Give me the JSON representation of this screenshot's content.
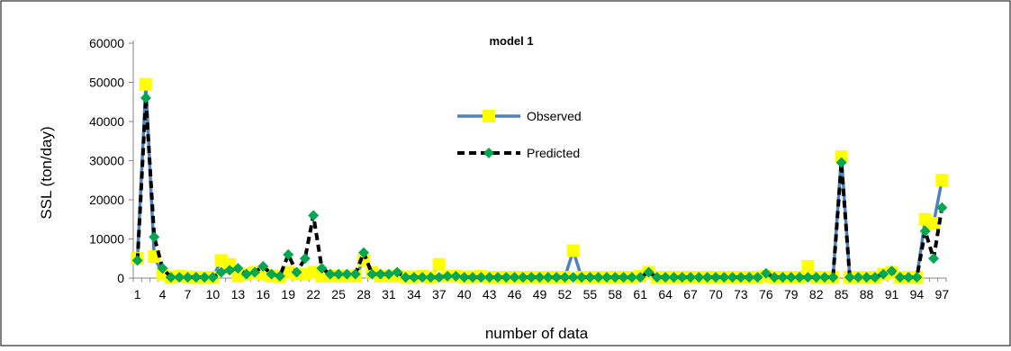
{
  "chart_data": {
    "type": "line",
    "title": "model 1",
    "xlabel": "number of data",
    "ylabel": "SSL (ton/day)",
    "ylim": [
      0,
      60000
    ],
    "xlim": [
      1,
      97
    ],
    "y_ticks": [
      0,
      10000,
      20000,
      30000,
      40000,
      50000,
      60000
    ],
    "y_tick_labels": [
      "0",
      "10000",
      "20000",
      "30000",
      "40000",
      "50000",
      "60000"
    ],
    "x_ticks": [
      1,
      4,
      7,
      10,
      13,
      16,
      19,
      22,
      25,
      28,
      31,
      34,
      37,
      40,
      43,
      46,
      49,
      52,
      55,
      58,
      61,
      64,
      67,
      70,
      73,
      76,
      79,
      82,
      85,
      88,
      91,
      94,
      97
    ],
    "x_tick_labels": [
      "1",
      "4",
      "7",
      "10",
      "13",
      "16",
      "19",
      "22",
      "25",
      "28",
      "31",
      "34",
      "37",
      "40",
      "43",
      "46",
      "49",
      "52",
      "55",
      "58",
      "61",
      "64",
      "67",
      "70",
      "73",
      "76",
      "79",
      "82",
      "85",
      "88",
      "91",
      "94",
      "97"
    ],
    "grid": false,
    "legend_position": "upper-center",
    "series": [
      {
        "name": "Observed",
        "color": "#4f81bd",
        "marker_color": "#ffff00",
        "marker": "square",
        "line_style": "solid",
        "values": [
          5000,
          49500,
          5500,
          1000,
          200,
          500,
          300,
          200,
          100,
          200,
          4500,
          3500,
          500,
          1000,
          1500,
          1000,
          500,
          300,
          1500,
          1000,
          1000,
          1500,
          500,
          500,
          500,
          500,
          500,
          4500,
          1500,
          500,
          500,
          500,
          300,
          300,
          500,
          200,
          3500,
          500,
          500,
          300,
          300,
          500,
          200,
          200,
          200,
          200,
          200,
          200,
          200,
          200,
          200,
          200,
          7000,
          200,
          200,
          200,
          200,
          200,
          200,
          200,
          500,
          1500,
          200,
          200,
          200,
          200,
          200,
          200,
          200,
          200,
          200,
          200,
          200,
          200,
          200,
          500,
          200,
          200,
          200,
          200,
          3000,
          200,
          200,
          200,
          31000,
          200,
          200,
          200,
          200,
          1000,
          1500,
          200,
          200,
          200,
          15000,
          14000,
          25000
        ]
      },
      {
        "name": "Predicted",
        "color": "#000000",
        "marker_color": "#00a651",
        "marker": "diamond",
        "line_style": "dashed",
        "values": [
          4500,
          46000,
          10500,
          2500,
          200,
          200,
          200,
          200,
          200,
          200,
          1500,
          2000,
          2500,
          1000,
          1500,
          3000,
          1000,
          500,
          6000,
          1500,
          5000,
          16000,
          2500,
          1000,
          1000,
          1000,
          1000,
          6500,
          1000,
          1000,
          1000,
          1500,
          200,
          200,
          200,
          200,
          200,
          500,
          500,
          200,
          200,
          200,
          200,
          200,
          200,
          200,
          200,
          200,
          200,
          200,
          200,
          200,
          200,
          200,
          200,
          200,
          200,
          200,
          200,
          200,
          200,
          1500,
          200,
          200,
          200,
          200,
          200,
          200,
          200,
          200,
          200,
          200,
          200,
          200,
          200,
          1200,
          200,
          200,
          200,
          200,
          200,
          200,
          200,
          200,
          29500,
          200,
          200,
          200,
          200,
          1000,
          1800,
          200,
          200,
          200,
          12000,
          5000,
          18000
        ]
      }
    ]
  }
}
